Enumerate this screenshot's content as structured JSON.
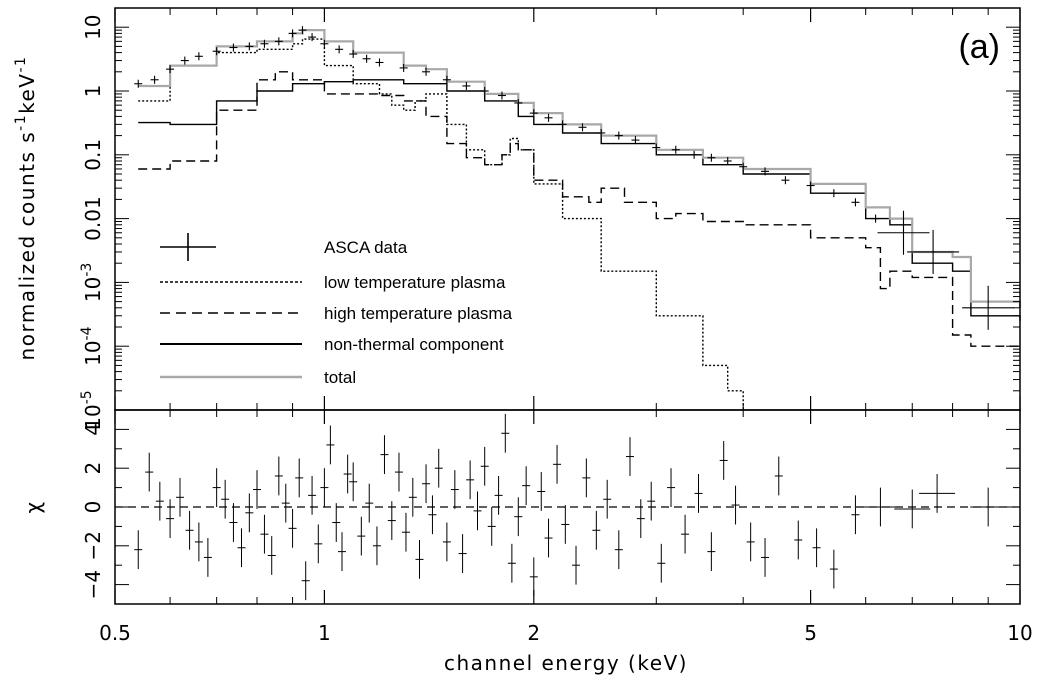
{
  "chart_data": [
    {
      "panel": "top",
      "type": "line",
      "panel_label": "(a)",
      "ylabel": "normalized counts s$^{-1}$keV$^{-1}$",
      "ylabel_parts": {
        "base": "normalized counts s",
        "exp1": "-1",
        "mid": "keV",
        "exp2": "-1"
      },
      "xscale": "log",
      "yscale": "log",
      "xlim": [
        0.5,
        10
      ],
      "ylim": [
        1e-05,
        20
      ],
      "y_ticks": [
        {
          "value": 10,
          "label": "10"
        },
        {
          "value": 1,
          "label": "1"
        },
        {
          "value": 0.1,
          "label": "0.1"
        },
        {
          "value": 0.01,
          "label": "0.01"
        },
        {
          "value": 0.001,
          "base": "10",
          "exp": "-3"
        },
        {
          "value": 0.0001,
          "base": "10",
          "exp": "-4"
        },
        {
          "value": 1e-05,
          "base": "10",
          "exp": "-5"
        }
      ],
      "legend": {
        "placement": "lower-left",
        "entries": [
          {
            "label": "ASCA data",
            "style": "cross",
            "color": "#000000"
          },
          {
            "label": "low temperature plasma",
            "style": "dotted",
            "color": "#000000"
          },
          {
            "label": "high temperature plasma",
            "style": "dashed",
            "color": "#000000"
          },
          {
            "label": "non-thermal component",
            "style": "solid",
            "color": "#000000"
          },
          {
            "label": "total",
            "style": "solid",
            "color": "#a8a8a8"
          }
        ]
      },
      "series": [
        {
          "style": "dotted",
          "color": "#000000",
          "x": [
            0.54,
            0.6,
            0.7,
            0.8,
            0.9,
            0.93,
            1.0,
            1.1,
            1.2,
            1.25,
            1.3,
            1.35,
            1.4,
            1.5,
            1.6,
            1.7,
            1.8,
            1.85,
            1.9,
            2.0,
            2.2,
            2.5,
            3.0,
            3.5,
            3.8,
            4.0
          ],
          "y": [
            0.7,
            2.5,
            4.0,
            4.5,
            5.5,
            6.5,
            2.5,
            1.3,
            0.9,
            0.6,
            0.5,
            0.7,
            0.9,
            0.3,
            0.12,
            0.07,
            0.1,
            0.18,
            0.12,
            0.035,
            0.01,
            0.0015,
            0.0003,
            5e-05,
            2e-05,
            1e-05
          ]
        },
        {
          "style": "dashed",
          "color": "#000000",
          "x": [
            0.54,
            0.6,
            0.7,
            0.8,
            0.85,
            0.9,
            1.0,
            1.1,
            1.2,
            1.3,
            1.4,
            1.5,
            1.6,
            1.7,
            1.8,
            1.85,
            1.9,
            2.0,
            2.2,
            2.4,
            2.5,
            2.7,
            3.0,
            3.2,
            3.5,
            4.0,
            5.0,
            6.0,
            6.3,
            6.5,
            7.0,
            8.0,
            8.5,
            10.0
          ],
          "y": [
            0.06,
            0.08,
            0.5,
            1.5,
            2.0,
            1.5,
            0.9,
            0.9,
            0.85,
            0.7,
            0.4,
            0.15,
            0.09,
            0.07,
            0.1,
            0.15,
            0.12,
            0.04,
            0.022,
            0.018,
            0.03,
            0.018,
            0.01,
            0.012,
            0.009,
            0.008,
            0.005,
            0.0035,
            0.0008,
            0.0015,
            0.0012,
            0.00015,
            0.0001,
            0.0001
          ]
        },
        {
          "style": "solid",
          "color": "#000000",
          "x": [
            0.54,
            0.6,
            0.7,
            0.8,
            0.9,
            1.0,
            1.1,
            1.3,
            1.5,
            1.7,
            1.9,
            2.0,
            2.2,
            2.5,
            3.0,
            3.5,
            4.0,
            5.0,
            6.0,
            6.5,
            7.0,
            8.0,
            8.5,
            10.0
          ],
          "y": [
            0.32,
            0.3,
            0.7,
            1.0,
            1.3,
            1.4,
            1.5,
            1.3,
            1.0,
            0.7,
            0.4,
            0.3,
            0.22,
            0.15,
            0.1,
            0.07,
            0.05,
            0.025,
            0.01,
            0.008,
            0.002,
            0.0015,
            0.0003,
            0.00025
          ]
        },
        {
          "style": "solid",
          "color": "#a8a8a8",
          "x": [
            0.54,
            0.6,
            0.7,
            0.8,
            0.9,
            0.93,
            1.0,
            1.1,
            1.3,
            1.4,
            1.5,
            1.7,
            1.9,
            2.0,
            2.2,
            2.5,
            3.0,
            3.5,
            4.0,
            5.0,
            6.0,
            6.5,
            7.0,
            8.0,
            8.5,
            10.0
          ],
          "y": [
            1.2,
            2.5,
            5.0,
            6.0,
            8.0,
            9.0,
            6.0,
            4.0,
            2.5,
            2.2,
            1.4,
            0.9,
            0.65,
            0.45,
            0.3,
            0.2,
            0.12,
            0.09,
            0.06,
            0.035,
            0.015,
            0.01,
            0.003,
            0.0025,
            0.0005,
            0.0004
          ]
        }
      ],
      "data_points": {
        "x": [
          0.54,
          0.57,
          0.6,
          0.63,
          0.66,
          0.7,
          0.74,
          0.78,
          0.82,
          0.86,
          0.9,
          0.93,
          0.96,
          1.0,
          1.05,
          1.1,
          1.15,
          1.2,
          1.3,
          1.4,
          1.5,
          1.6,
          1.7,
          1.8,
          1.9,
          2.0,
          2.1,
          2.2,
          2.35,
          2.5,
          2.65,
          2.8,
          3.0,
          3.2,
          3.4,
          3.6,
          3.8,
          4.0,
          4.3,
          4.6,
          5.0,
          5.4,
          5.8,
          6.2,
          6.8,
          7.5,
          9.0
        ],
        "y": [
          1.3,
          1.5,
          2.2,
          3.0,
          3.5,
          4.2,
          4.8,
          5.0,
          5.5,
          6.0,
          8.0,
          9.0,
          7.0,
          5.5,
          4.5,
          3.8,
          3.2,
          2.8,
          2.3,
          2.0,
          1.5,
          1.2,
          1.0,
          0.85,
          0.65,
          0.45,
          0.38,
          0.3,
          0.27,
          0.22,
          0.2,
          0.17,
          0.13,
          0.12,
          0.1,
          0.09,
          0.08,
          0.065,
          0.055,
          0.04,
          0.033,
          0.025,
          0.018,
          0.01,
          0.006,
          0.003,
          0.0004
        ]
      }
    },
    {
      "panel": "bottom",
      "type": "scatter",
      "xlabel": "channel energy (keV)",
      "ylabel": "χ",
      "xscale": "log",
      "xlim": [
        0.5,
        10
      ],
      "ylim": [
        -5,
        5
      ],
      "y_ticks": [
        4,
        2,
        0,
        -2,
        -4
      ],
      "x_ticks": [
        {
          "value": 0.5,
          "label": "0.5"
        },
        {
          "value": 1,
          "label": "1"
        },
        {
          "value": 2,
          "label": "2"
        },
        {
          "value": 5,
          "label": "5"
        },
        {
          "value": 10,
          "label": "10"
        }
      ],
      "zero_line": "dashed",
      "points": {
        "x": [
          0.54,
          0.56,
          0.58,
          0.6,
          0.62,
          0.64,
          0.66,
          0.68,
          0.7,
          0.72,
          0.74,
          0.76,
          0.78,
          0.8,
          0.82,
          0.84,
          0.86,
          0.88,
          0.9,
          0.92,
          0.94,
          0.96,
          0.98,
          1.0,
          1.02,
          1.04,
          1.06,
          1.08,
          1.1,
          1.13,
          1.16,
          1.19,
          1.22,
          1.25,
          1.28,
          1.31,
          1.34,
          1.37,
          1.4,
          1.43,
          1.46,
          1.5,
          1.54,
          1.58,
          1.62,
          1.66,
          1.7,
          1.74,
          1.78,
          1.82,
          1.86,
          1.9,
          1.95,
          2.0,
          2.05,
          2.1,
          2.16,
          2.22,
          2.3,
          2.38,
          2.46,
          2.55,
          2.65,
          2.75,
          2.85,
          2.95,
          3.05,
          3.15,
          3.3,
          3.45,
          3.6,
          3.75,
          3.9,
          4.1,
          4.3,
          4.5,
          4.8,
          5.1,
          5.4,
          5.8,
          6.3,
          7.0,
          7.6,
          9.0
        ],
        "y": [
          -2.2,
          1.8,
          0.3,
          -0.6,
          0.5,
          -1.2,
          -1.8,
          -2.6,
          1.0,
          0.4,
          -0.8,
          -2.1,
          -0.3,
          0.9,
          -1.4,
          -2.5,
          1.6,
          0.2,
          -1.1,
          1.5,
          -3.8,
          0.6,
          -1.9,
          1.0,
          3.2,
          -0.8,
          -2.3,
          1.7,
          1.3,
          -1.5,
          0.2,
          -2.0,
          2.7,
          -0.7,
          1.8,
          -1.3,
          0.5,
          -2.7,
          1.2,
          -0.4,
          2.0,
          -1.8,
          0.9,
          -2.4,
          1.4,
          -0.2,
          2.1,
          -1.0,
          0.6,
          3.8,
          -2.9,
          -0.5,
          1.1,
          -3.6,
          0.8,
          -1.6,
          2.2,
          -0.9,
          -3.0,
          1.5,
          -1.2,
          0.4,
          -2.2,
          2.6,
          -0.6,
          0.3,
          -2.9,
          1.0,
          -1.4,
          0.7,
          -2.3,
          2.4,
          0.1,
          -1.8,
          -2.6,
          1.6,
          -1.7,
          -2.1,
          -3.2,
          -0.4,
          0.0,
          -0.1,
          0.7,
          0.0
        ],
        "err": [
          1.0,
          1.0,
          1.0,
          1.0,
          1.0,
          1.0,
          1.0,
          1.0,
          1.0,
          1.0,
          1.0,
          1.0,
          1.0,
          1.0,
          1.0,
          1.0,
          1.0,
          1.0,
          1.0,
          1.0,
          1.0,
          1.0,
          1.0,
          1.0,
          1.0,
          1.0,
          1.0,
          1.0,
          1.0,
          1.0,
          1.0,
          1.0,
          1.0,
          1.0,
          1.0,
          1.0,
          1.0,
          1.0,
          1.0,
          1.0,
          1.0,
          1.0,
          1.0,
          1.0,
          1.0,
          1.0,
          1.0,
          1.0,
          1.0,
          1.0,
          1.0,
          1.0,
          1.0,
          1.0,
          1.0,
          1.0,
          1.0,
          1.0,
          1.0,
          1.0,
          1.0,
          1.0,
          1.0,
          1.0,
          1.0,
          1.0,
          1.0,
          1.0,
          1.0,
          1.0,
          1.0,
          1.0,
          1.0,
          1.0,
          1.0,
          1.0,
          1.0,
          1.0,
          1.0,
          1.0,
          1.0,
          1.0,
          1.0,
          1.0
        ]
      }
    }
  ]
}
